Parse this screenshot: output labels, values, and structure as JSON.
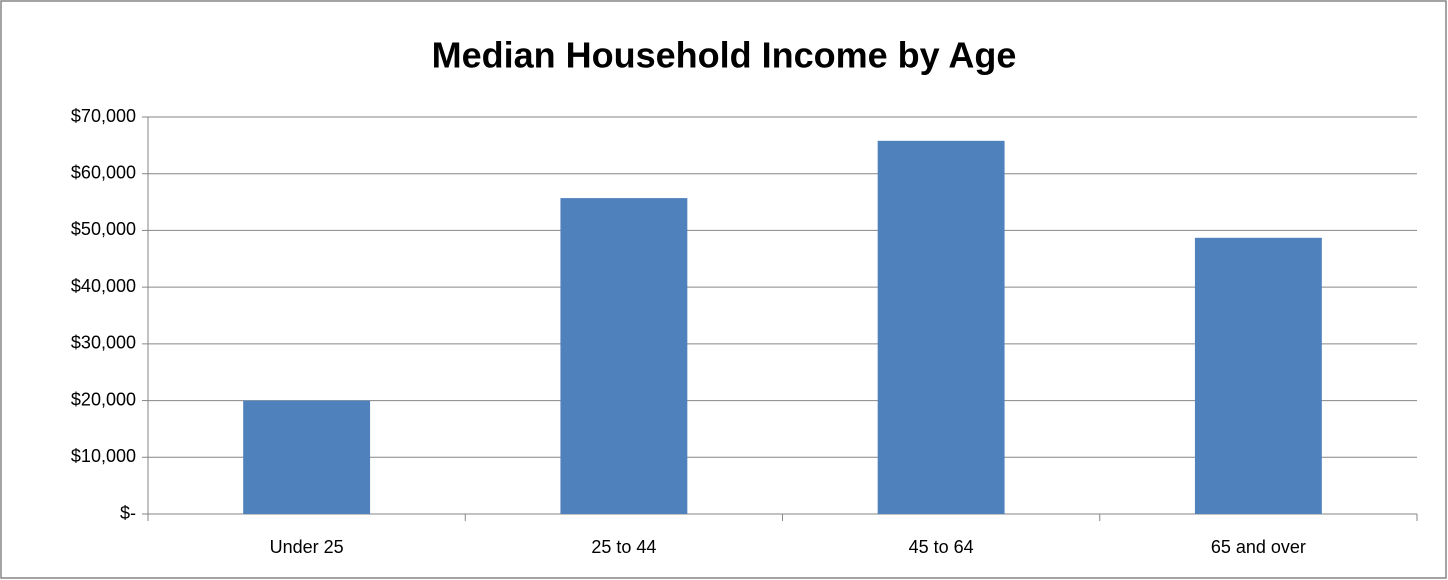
{
  "chart_data": {
    "type": "bar",
    "title": "Median Household Income by Age",
    "categories": [
      "Under 25",
      "25 to 44",
      "45 to 64",
      "65 and over"
    ],
    "values": [
      20000,
      55700,
      65800,
      48700
    ],
    "color": "#4f81bd",
    "ylim": [
      0,
      70000
    ],
    "yticks": [
      {
        "value": 0,
        "label": "$-"
      },
      {
        "value": 10000,
        "label": "$10,000"
      },
      {
        "value": 20000,
        "label": "$20,000"
      },
      {
        "value": 30000,
        "label": "$30,000"
      },
      {
        "value": 40000,
        "label": "$40,000"
      },
      {
        "value": 50000,
        "label": "$50,000"
      },
      {
        "value": 60000,
        "label": "$60,000"
      },
      {
        "value": 70000,
        "label": "$70,000"
      }
    ],
    "grid": true
  }
}
